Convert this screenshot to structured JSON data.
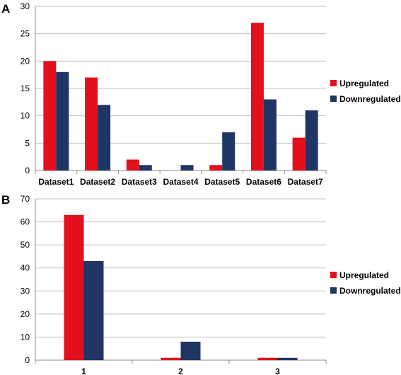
{
  "colors": {
    "upregulated": "#e3101c",
    "downregulated": "#1f3564"
  },
  "chart_data": [
    {
      "panel": "A",
      "type": "bar",
      "categories": [
        "Dataset1",
        "Dataset2",
        "Dataset3",
        "Dataset4",
        "Dataset5",
        "Dataset6",
        "Dataset7"
      ],
      "series": [
        {
          "name": "Upregulated",
          "values": [
            20,
            17,
            2,
            0,
            1,
            27,
            6
          ]
        },
        {
          "name": "Downregulated",
          "values": [
            18,
            12,
            1,
            1,
            7,
            13,
            11
          ]
        }
      ],
      "ylim": [
        0,
        30
      ],
      "yticks": [
        0,
        5,
        10,
        15,
        20,
        25,
        30
      ],
      "grid": true,
      "legend": "right"
    },
    {
      "panel": "B",
      "type": "bar",
      "categories": [
        "1",
        "2",
        "3"
      ],
      "series": [
        {
          "name": "Upregulated",
          "values": [
            63,
            1,
            1
          ]
        },
        {
          "name": "Downregulated",
          "values": [
            43,
            8,
            1
          ]
        }
      ],
      "ylim": [
        0,
        70
      ],
      "yticks": [
        0,
        10,
        20,
        30,
        40,
        50,
        60,
        70
      ],
      "grid": true,
      "legend": "right"
    }
  ]
}
